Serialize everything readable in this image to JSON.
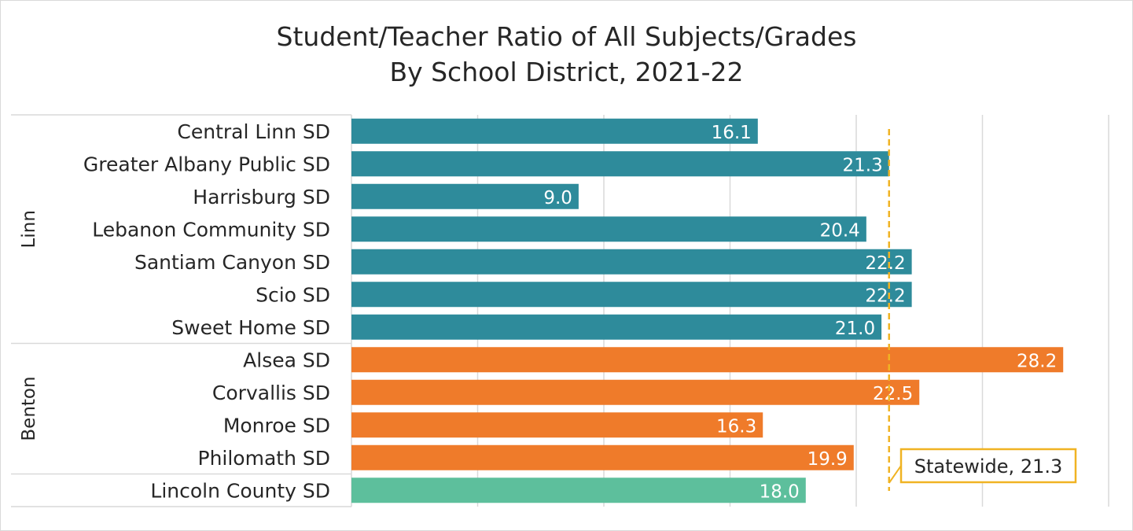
{
  "chart_data": {
    "type": "bar",
    "orientation": "horizontal",
    "title_lines": [
      "Student/Teacher Ratio of All Subjects/Grades",
      "By School District, 2021-22"
    ],
    "groups": [
      {
        "name": "Linn",
        "color": "#2e8b9b",
        "categories": [
          "Central Linn SD",
          "Greater Albany Public SD",
          "Harrisburg SD",
          "Lebanon Community SD",
          "Santiam Canyon SD",
          "Scio SD",
          "Sweet Home SD"
        ],
        "values": [
          16.1,
          21.3,
          9.0,
          20.4,
          22.2,
          22.2,
          21.0
        ],
        "labels": [
          "16.1",
          "21.3",
          "9.0",
          "20.4",
          "22.2",
          "22.2",
          "21.0"
        ]
      },
      {
        "name": "Benton",
        "color": "#ef7b2a",
        "categories": [
          "Alsea SD",
          "Corvallis SD",
          "Monroe SD",
          "Philomath SD"
        ],
        "values": [
          28.2,
          22.5,
          16.3,
          19.9
        ],
        "labels": [
          "28.2",
          "22.5",
          "16.3",
          "19.9"
        ]
      },
      {
        "name": "",
        "color": "#5dbf9c",
        "categories": [
          "Lincoln County SD"
        ],
        "values": [
          18.0
        ],
        "labels": [
          "18.0"
        ]
      }
    ],
    "xlim": [
      0,
      30
    ],
    "gridlines": true,
    "reference_line": {
      "value": 21.3,
      "label": "Statewide, 21.3",
      "color": "#f0b323"
    }
  }
}
